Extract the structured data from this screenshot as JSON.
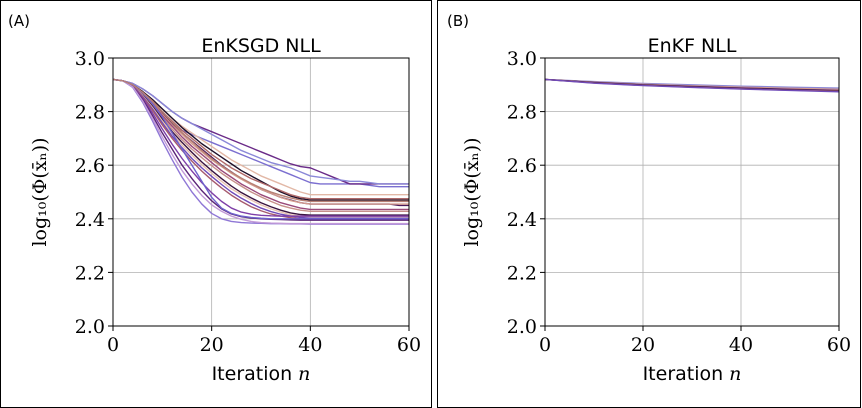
{
  "chart_data": [
    {
      "type": "line",
      "panel_label": "(A)",
      "title": "EnKSGD NLL",
      "xlabel": "Iteration",
      "xlabel_var": "n",
      "ylabel": "log₁₀(Φ(x̄ₙ))",
      "xlim": [
        0,
        60
      ],
      "ylim": [
        2.0,
        3.0
      ],
      "xticks": [
        "0",
        "20",
        "40",
        "60"
      ],
      "yticks": [
        "2.0",
        "2.2",
        "2.4",
        "2.6",
        "2.8",
        "3.0"
      ],
      "grid": true,
      "x": [
        0,
        2,
        4,
        6,
        8,
        10,
        12,
        14,
        16,
        18,
        20,
        22,
        24,
        26,
        28,
        30,
        32,
        34,
        36,
        38,
        40,
        42,
        44,
        46,
        48,
        50,
        52,
        54,
        56,
        58,
        60
      ],
      "series": [
        {
          "color": "#7b6fd0",
          "values": [
            2.92,
            2.915,
            2.9,
            2.87,
            2.83,
            2.79,
            2.755,
            2.73,
            2.715,
            2.7,
            2.685,
            2.67,
            2.655,
            2.64,
            2.625,
            2.61,
            2.595,
            2.58,
            2.565,
            2.55,
            2.535,
            2.53,
            2.53,
            2.53,
            2.53,
            2.53,
            2.525,
            2.52,
            2.52,
            2.52,
            2.52
          ]
        },
        {
          "color": "#6a2b88",
          "values": [
            2.92,
            2.915,
            2.905,
            2.885,
            2.86,
            2.83,
            2.8,
            2.775,
            2.755,
            2.74,
            2.725,
            2.71,
            2.695,
            2.68,
            2.665,
            2.65,
            2.635,
            2.62,
            2.605,
            2.595,
            2.59,
            2.575,
            2.56,
            2.545,
            2.53,
            2.53,
            2.53,
            2.53,
            2.53,
            2.53,
            2.53
          ]
        },
        {
          "color": "#8a88d8",
          "values": [
            2.92,
            2.915,
            2.905,
            2.885,
            2.86,
            2.83,
            2.8,
            2.775,
            2.755,
            2.735,
            2.715,
            2.695,
            2.675,
            2.655,
            2.64,
            2.625,
            2.61,
            2.6,
            2.59,
            2.575,
            2.56,
            2.555,
            2.55,
            2.545,
            2.54,
            2.54,
            2.535,
            2.53,
            2.53,
            2.53,
            2.53
          ]
        },
        {
          "color": "#e2b8a6",
          "values": [
            2.92,
            2.915,
            2.9,
            2.875,
            2.845,
            2.81,
            2.775,
            2.745,
            2.72,
            2.695,
            2.67,
            2.645,
            2.62,
            2.6,
            2.58,
            2.56,
            2.545,
            2.53,
            2.515,
            2.5,
            2.49,
            2.49,
            2.49,
            2.49,
            2.49,
            2.49,
            2.49,
            2.49,
            2.49,
            2.49,
            2.49
          ]
        },
        {
          "color": "#1f1029",
          "values": [
            2.92,
            2.915,
            2.9,
            2.875,
            2.845,
            2.81,
            2.775,
            2.74,
            2.71,
            2.68,
            2.655,
            2.63,
            2.605,
            2.58,
            2.56,
            2.54,
            2.52,
            2.5,
            2.485,
            2.475,
            2.47,
            2.47,
            2.47,
            2.47,
            2.47,
            2.47,
            2.47,
            2.47,
            2.47,
            2.47,
            2.47
          ]
        },
        {
          "color": "#b06a6a",
          "values": [
            2.92,
            2.915,
            2.9,
            2.872,
            2.84,
            2.8,
            2.765,
            2.73,
            2.7,
            2.67,
            2.64,
            2.615,
            2.59,
            2.57,
            2.55,
            2.535,
            2.52,
            2.505,
            2.49,
            2.48,
            2.475,
            2.475,
            2.475,
            2.475,
            2.475,
            2.475,
            2.475,
            2.475,
            2.475,
            2.475,
            2.475
          ]
        },
        {
          "color": "#4a1a5c",
          "values": [
            2.92,
            2.915,
            2.9,
            2.87,
            2.835,
            2.795,
            2.755,
            2.72,
            2.69,
            2.66,
            2.63,
            2.6,
            2.575,
            2.55,
            2.53,
            2.51,
            2.495,
            2.48,
            2.47,
            2.46,
            2.455,
            2.455,
            2.455,
            2.455,
            2.455,
            2.455,
            2.455,
            2.455,
            2.455,
            2.45,
            2.45
          ]
        },
        {
          "color": "#d49b8d",
          "values": [
            2.92,
            2.915,
            2.9,
            2.87,
            2.832,
            2.79,
            2.75,
            2.715,
            2.68,
            2.65,
            2.62,
            2.595,
            2.57,
            2.548,
            2.528,
            2.51,
            2.495,
            2.48,
            2.468,
            2.46,
            2.455,
            2.455,
            2.455,
            2.455,
            2.455,
            2.455,
            2.455,
            2.455,
            2.455,
            2.455,
            2.455
          ]
        },
        {
          "color": "#9a4a7a",
          "values": [
            2.92,
            2.915,
            2.9,
            2.868,
            2.83,
            2.785,
            2.745,
            2.705,
            2.67,
            2.64,
            2.61,
            2.58,
            2.555,
            2.53,
            2.51,
            2.49,
            2.475,
            2.46,
            2.45,
            2.44,
            2.435,
            2.435,
            2.435,
            2.435,
            2.435,
            2.435,
            2.435,
            2.435,
            2.435,
            2.435,
            2.435
          ]
        },
        {
          "color": "#c7908a",
          "values": [
            2.92,
            2.915,
            2.9,
            2.865,
            2.825,
            2.78,
            2.735,
            2.695,
            2.66,
            2.628,
            2.598,
            2.57,
            2.545,
            2.522,
            2.5,
            2.482,
            2.465,
            2.45,
            2.44,
            2.432,
            2.428,
            2.428,
            2.428,
            2.428,
            2.428,
            2.428,
            2.428,
            2.428,
            2.428,
            2.428,
            2.428
          ]
        },
        {
          "color": "#3a1440",
          "values": [
            2.92,
            2.915,
            2.898,
            2.862,
            2.82,
            2.772,
            2.725,
            2.685,
            2.648,
            2.612,
            2.58,
            2.55,
            2.522,
            2.498,
            2.478,
            2.46,
            2.445,
            2.432,
            2.422,
            2.416,
            2.414,
            2.414,
            2.414,
            2.414,
            2.414,
            2.414,
            2.414,
            2.414,
            2.414,
            2.414,
            2.414
          ]
        },
        {
          "color": "#e9c3b2",
          "values": [
            2.92,
            2.915,
            2.898,
            2.86,
            2.815,
            2.765,
            2.718,
            2.675,
            2.638,
            2.602,
            2.57,
            2.54,
            2.512,
            2.49,
            2.47,
            2.452,
            2.437,
            2.425,
            2.415,
            2.41,
            2.408,
            2.408,
            2.408,
            2.408,
            2.408,
            2.408,
            2.408,
            2.408,
            2.408,
            2.408,
            2.408
          ]
        },
        {
          "color": "#6f4ab8",
          "values": [
            2.92,
            2.915,
            2.897,
            2.857,
            2.81,
            2.758,
            2.708,
            2.665,
            2.625,
            2.59,
            2.558,
            2.528,
            2.5,
            2.477,
            2.457,
            2.44,
            2.427,
            2.417,
            2.41,
            2.405,
            2.402,
            2.402,
            2.402,
            2.402,
            2.402,
            2.402,
            2.402,
            2.402,
            2.402,
            2.402,
            2.402
          ]
        },
        {
          "color": "#a65a6e",
          "values": [
            2.92,
            2.915,
            2.896,
            2.855,
            2.805,
            2.75,
            2.7,
            2.655,
            2.615,
            2.578,
            2.545,
            2.515,
            2.488,
            2.465,
            2.445,
            2.43,
            2.418,
            2.41,
            2.404,
            2.4,
            2.398,
            2.398,
            2.398,
            2.398,
            2.398,
            2.398,
            2.398,
            2.398,
            2.398,
            2.398,
            2.398
          ]
        },
        {
          "color": "#7e3fa8",
          "values": [
            2.92,
            2.915,
            2.895,
            2.85,
            2.795,
            2.735,
            2.678,
            2.625,
            2.578,
            2.535,
            2.497,
            2.465,
            2.44,
            2.425,
            2.417,
            2.413,
            2.411,
            2.41,
            2.41,
            2.41,
            2.41,
            2.41,
            2.41,
            2.41,
            2.41,
            2.41,
            2.41,
            2.41,
            2.41,
            2.41,
            2.41
          ]
        },
        {
          "color": "#5a2478",
          "values": [
            2.92,
            2.915,
            2.893,
            2.845,
            2.785,
            2.72,
            2.66,
            2.6,
            2.55,
            2.505,
            2.467,
            2.437,
            2.418,
            2.408,
            2.403,
            2.4,
            2.398,
            2.397,
            2.396,
            2.395,
            2.395,
            2.395,
            2.395,
            2.395,
            2.395,
            2.395,
            2.395,
            2.395,
            2.395,
            2.395,
            2.395
          ]
        },
        {
          "color": "#8f77d6",
          "values": [
            2.92,
            2.915,
            2.89,
            2.835,
            2.765,
            2.69,
            2.62,
            2.555,
            2.5,
            2.455,
            2.42,
            2.4,
            2.39,
            2.386,
            2.384,
            2.383,
            2.382,
            2.382,
            2.381,
            2.381,
            2.38,
            2.38,
            2.38,
            2.38,
            2.38,
            2.38,
            2.38,
            2.38,
            2.38,
            2.38,
            2.38
          ]
        },
        {
          "color": "#c29ad8",
          "values": [
            2.92,
            2.915,
            2.892,
            2.84,
            2.775,
            2.705,
            2.64,
            2.58,
            2.53,
            2.487,
            2.452,
            2.428,
            2.41,
            2.398,
            2.39,
            2.386,
            2.384,
            2.383,
            2.382,
            2.382,
            2.382,
            2.382,
            2.382,
            2.382,
            2.382,
            2.382,
            2.382,
            2.382,
            2.382,
            2.382,
            2.382
          ]
        },
        {
          "color": "#6e62cc",
          "values": [
            2.92,
            2.915,
            2.9,
            2.87,
            2.83,
            2.78,
            2.72,
            2.66,
            2.6,
            2.54,
            2.48,
            2.44,
            2.42,
            2.41,
            2.405,
            2.402,
            2.4,
            2.4,
            2.4,
            2.4,
            2.4,
            2.4,
            2.4,
            2.4,
            2.4,
            2.4,
            2.4,
            2.4,
            2.4,
            2.4,
            2.4
          ]
        },
        {
          "color": "#b78074",
          "values": [
            2.92,
            2.915,
            2.9,
            2.872,
            2.838,
            2.8,
            2.76,
            2.722,
            2.688,
            2.655,
            2.625,
            2.598,
            2.574,
            2.552,
            2.532,
            2.515,
            2.5,
            2.488,
            2.478,
            2.47,
            2.465,
            2.465,
            2.465,
            2.465,
            2.465,
            2.465,
            2.465,
            2.465,
            2.465,
            2.465,
            2.465
          ]
        }
      ]
    },
    {
      "type": "line",
      "panel_label": "(B)",
      "title": "EnKF NLL",
      "xlabel": "Iteration",
      "xlabel_var": "n",
      "ylabel": "log₁₀(Φ(x̄ₙ))",
      "xlim": [
        0,
        60
      ],
      "ylim": [
        2.0,
        3.0
      ],
      "xticks": [
        "0",
        "20",
        "40",
        "60"
      ],
      "yticks": [
        "2.0",
        "2.2",
        "2.4",
        "2.6",
        "2.8",
        "3.0"
      ],
      "grid": true,
      "x": [
        0,
        10,
        20,
        30,
        40,
        50,
        60
      ],
      "series": [
        {
          "color": "#8a88d8",
          "values": [
            2.92,
            2.912,
            2.905,
            2.9,
            2.895,
            2.891,
            2.888
          ]
        },
        {
          "color": "#d49b8d",
          "values": [
            2.92,
            2.91,
            2.902,
            2.896,
            2.891,
            2.887,
            2.883
          ]
        },
        {
          "color": "#5a2478",
          "values": [
            2.92,
            2.909,
            2.9,
            2.894,
            2.888,
            2.883,
            2.879
          ]
        },
        {
          "color": "#1f1029",
          "values": [
            2.92,
            2.908,
            2.899,
            2.892,
            2.886,
            2.881,
            2.877
          ]
        },
        {
          "color": "#a65a6e",
          "values": [
            2.92,
            2.907,
            2.898,
            2.891,
            2.885,
            2.88,
            2.876
          ]
        },
        {
          "color": "#6f4ab8",
          "values": [
            2.92,
            2.906,
            2.897,
            2.89,
            2.884,
            2.879,
            2.874
          ]
        }
      ]
    }
  ]
}
